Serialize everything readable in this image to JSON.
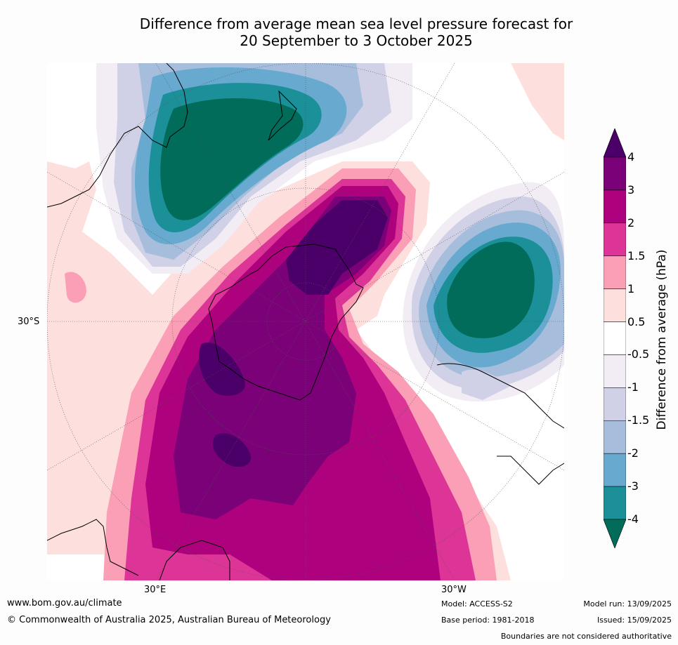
{
  "title_line1": "Difference from average mean sea level pressure forecast for",
  "title_line2": "20 September to 3 October 2025",
  "map": {
    "labels": {
      "lat_30s": "30°S",
      "lon_30e": "30°E",
      "lon_30w": "30°W"
    }
  },
  "colorbar": {
    "title": "Difference from average (hPa)",
    "ticks": [
      "4",
      "3",
      "2",
      "1.5",
      "1",
      "0.5",
      "-0.5",
      "-1",
      "-1.5",
      "-2",
      "-3",
      "-4"
    ],
    "colors": {
      "gt4": "#4a0068",
      "c3_4": "#7a0177",
      "c2_3": "#ae017e",
      "c15_2": "#dd3497",
      "c1_15": "#fa9fb5",
      "c05_1": "#fde0dd",
      "neutral": "#ffffff",
      "m1_m05": "#f2ecf4",
      "m15_m1": "#d0d1e6",
      "m2_m15": "#a6bddb",
      "m3_m2": "#67a9cf",
      "m4_m3": "#1c9099",
      "lt_m4": "#016c59"
    }
  },
  "footer": {
    "url": "www.bom.gov.au/climate",
    "copyright": "© Commonwealth of Australia 2025, Australian Bureau of Meteorology",
    "model": "Model: ACCESS-S2",
    "base_period": "Base period: 1981-2018",
    "model_run": "Model run: 13/09/2025",
    "issued": "Issued: 15/09/2025",
    "disclaimer": "Boundaries are not considered authoritative"
  }
}
